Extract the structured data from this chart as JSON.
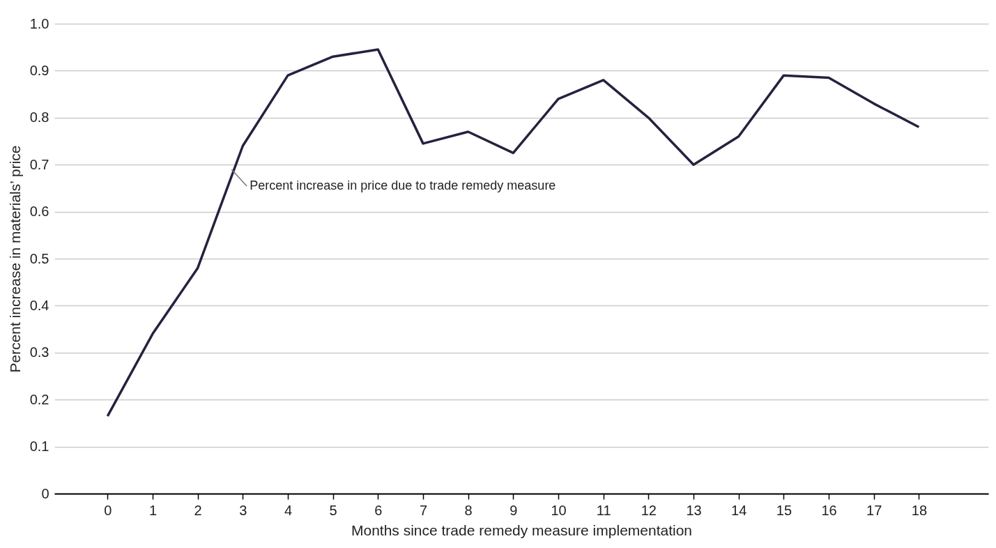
{
  "chart_data": {
    "type": "line",
    "xlabel": "Months since trade remedy measure implementation",
    "ylabel": "Percent increase in materials’ price",
    "x": [
      0,
      1,
      2,
      3,
      4,
      5,
      6,
      7,
      8,
      9,
      10,
      11,
      12,
      13,
      14,
      15,
      16,
      17,
      18
    ],
    "series": [
      {
        "color": "#25223f",
        "values": [
          0.165,
          0.34,
          0.48,
          0.74,
          0.89,
          0.93,
          0.945,
          0.745,
          0.77,
          0.725,
          0.84,
          0.88,
          0.8,
          0.7,
          0.76,
          0.89,
          0.885,
          0.83,
          0.78
        ]
      }
    ],
    "xlim": [
      -1.18,
      19.54
    ],
    "xticks": [
      0,
      1,
      2,
      3,
      4,
      5,
      6,
      7,
      8,
      9,
      10,
      11,
      12,
      13,
      14,
      15,
      16,
      17,
      18
    ],
    "ylim": [
      0,
      1.0
    ],
    "yticks": [
      0,
      0.1,
      0.2,
      0.3,
      0.4,
      0.5,
      0.6,
      0.7,
      0.8,
      0.9,
      {
        "value": 1.0,
        "label": "1.0"
      }
    ],
    "grid": "y",
    "annotations": [
      {
        "text": "Percent increase in price due to trade remedy measure",
        "x": 2.75,
        "y": 0.69
      }
    ]
  }
}
